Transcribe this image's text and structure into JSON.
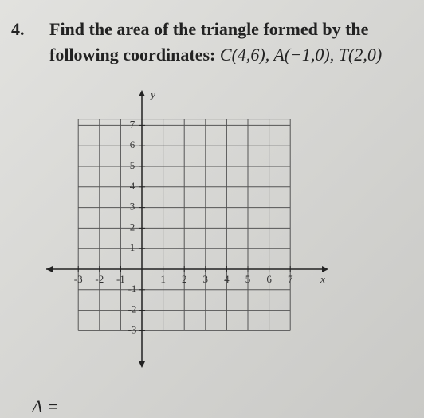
{
  "question": {
    "number": "4.",
    "line1": "Find the area of the triangle formed by the",
    "line2": "following coordinates:",
    "coordinates": "C(4,6), A(−1,0), T(2,0)"
  },
  "graph": {
    "x_axis_label": "x",
    "y_axis_label": "y",
    "x_tick_labels": [
      "-3",
      "-2",
      "-1",
      "1",
      "2",
      "3",
      "4",
      "5",
      "6",
      "7"
    ],
    "y_tick_labels": [
      "7",
      "6",
      "5",
      "4",
      "3",
      "2",
      "1",
      "-1",
      "-2",
      "-3"
    ]
  },
  "answer": {
    "label": "A ="
  }
}
